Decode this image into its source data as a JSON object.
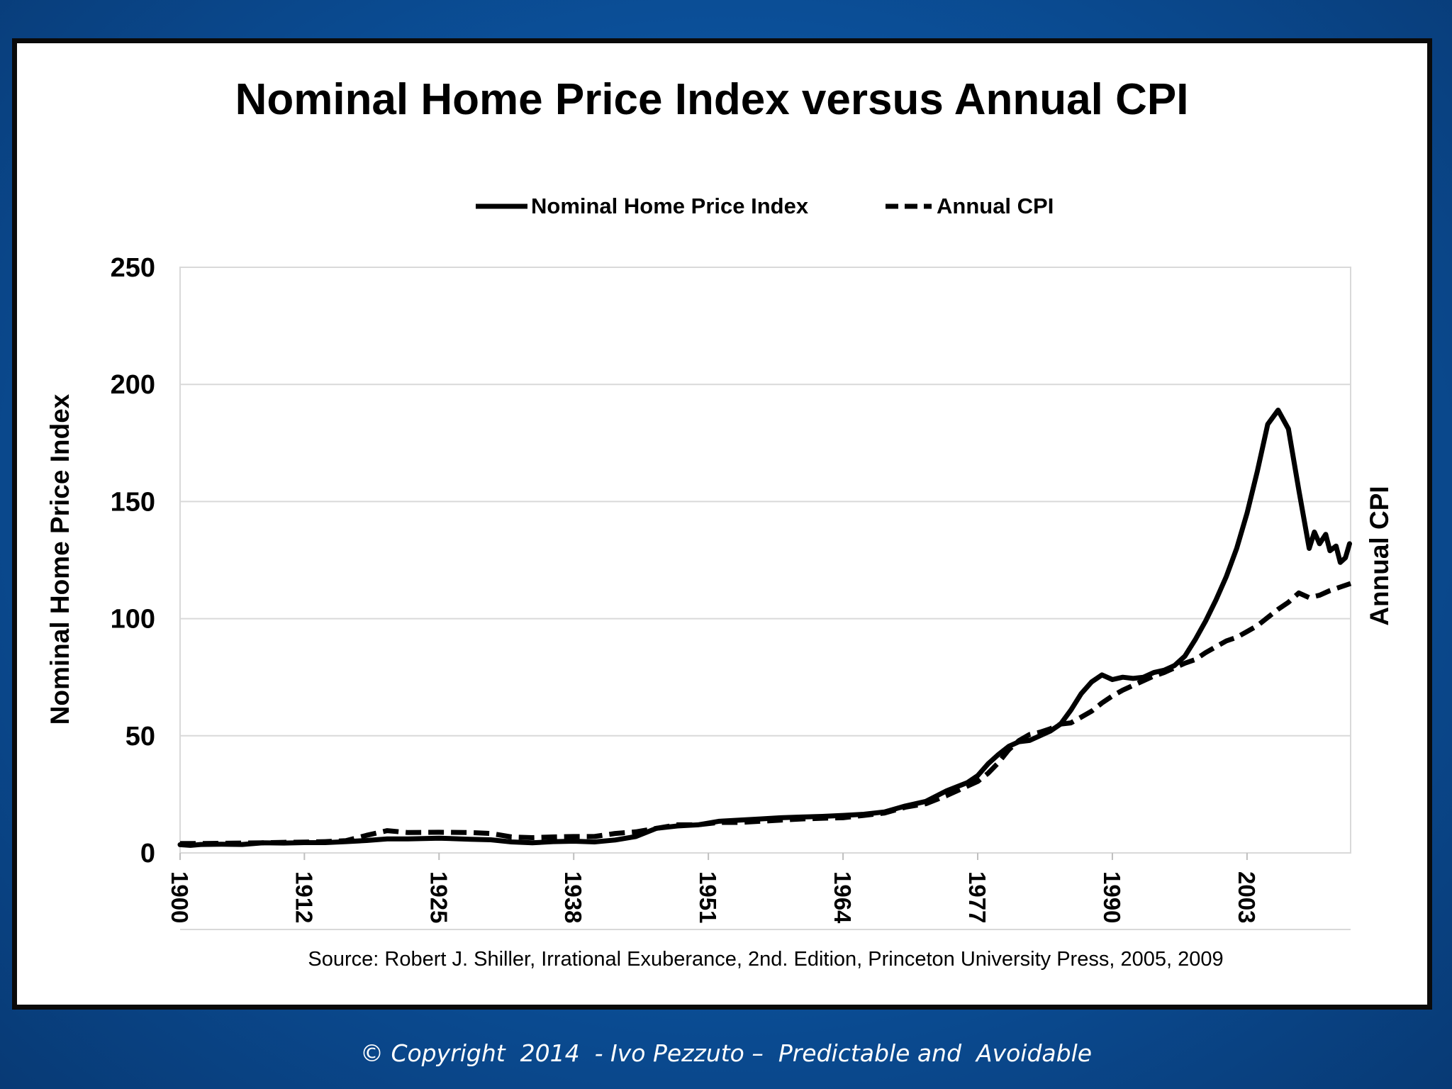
{
  "footer": "© Copyright  2014  - Ivo Pezzuto –  Predictable and  Avoidable",
  "colors": {
    "panel": "#ffffff",
    "line": "#000000",
    "grid": "#d9d9d9",
    "background": "#0b4f98"
  },
  "chart_data": {
    "type": "line",
    "title": "Nominal Home Price Index versus Annual CPI",
    "ylabel": "Nominal Home Price Index",
    "y2label": "Annual CPI",
    "source": "Source: Robert J. Shiller, Irrational Exuberance, 2nd. Edition, Princeton University Press, 2005, 2009",
    "xlim": [
      1900,
      2013
    ],
    "ylim": [
      0,
      250
    ],
    "yticks": [
      0,
      50,
      100,
      150,
      200,
      250
    ],
    "xticks": [
      1900,
      1912,
      1925,
      1938,
      1951,
      1964,
      1977,
      1990,
      2003
    ],
    "grid": true,
    "legend_position": "top",
    "series": [
      {
        "name": "Nominal Home Price Index",
        "style": "solid",
        "points": [
          [
            1900,
            3.5
          ],
          [
            1901,
            3.2
          ],
          [
            1902,
            3.6
          ],
          [
            1904,
            3.7
          ],
          [
            1906,
            3.6
          ],
          [
            1908,
            4.3
          ],
          [
            1910,
            4.2
          ],
          [
            1912,
            4.4
          ],
          [
            1914,
            4.4
          ],
          [
            1916,
            4.8
          ],
          [
            1918,
            5.3
          ],
          [
            1920,
            6.0
          ],
          [
            1922,
            6.0
          ],
          [
            1925,
            6.3
          ],
          [
            1928,
            5.8
          ],
          [
            1930,
            5.6
          ],
          [
            1932,
            4.7
          ],
          [
            1934,
            4.3
          ],
          [
            1936,
            4.8
          ],
          [
            1938,
            5.0
          ],
          [
            1940,
            4.7
          ],
          [
            1942,
            5.5
          ],
          [
            1944,
            7.0
          ],
          [
            1946,
            10.5
          ],
          [
            1948,
            11.5
          ],
          [
            1950,
            12.0
          ],
          [
            1952,
            13.5
          ],
          [
            1954,
            14.0
          ],
          [
            1956,
            14.5
          ],
          [
            1958,
            15.0
          ],
          [
            1960,
            15.3
          ],
          [
            1962,
            15.6
          ],
          [
            1964,
            16.0
          ],
          [
            1966,
            16.5
          ],
          [
            1968,
            17.5
          ],
          [
            1970,
            20.0
          ],
          [
            1972,
            22.0
          ],
          [
            1974,
            26.5
          ],
          [
            1976,
            30.0
          ],
          [
            1977,
            33.0
          ],
          [
            1978,
            38.0
          ],
          [
            1979,
            42.0
          ],
          [
            1980,
            45.5
          ],
          [
            1981,
            47.5
          ],
          [
            1982,
            48.0
          ],
          [
            1983,
            50.0
          ],
          [
            1984,
            52.0
          ],
          [
            1985,
            55.0
          ],
          [
            1986,
            61.0
          ],
          [
            1987,
            68.0
          ],
          [
            1988,
            73.0
          ],
          [
            1989,
            76.0
          ],
          [
            1990,
            74.0
          ],
          [
            1991,
            75.0
          ],
          [
            1992,
            74.5
          ],
          [
            1993,
            75.0
          ],
          [
            1994,
            77.0
          ],
          [
            1995,
            78.0
          ],
          [
            1996,
            80.0
          ],
          [
            1997,
            84.0
          ],
          [
            1998,
            91.0
          ],
          [
            1999,
            99.0
          ],
          [
            2000,
            108.0
          ],
          [
            2001,
            118.0
          ],
          [
            2002,
            130.0
          ],
          [
            2003,
            145.0
          ],
          [
            2004,
            163.0
          ],
          [
            2005,
            183.0
          ],
          [
            2006,
            189.0
          ],
          [
            2007,
            181.0
          ],
          [
            2008,
            155.0
          ],
          [
            2009,
            130.0
          ],
          [
            2009.5,
            137.0
          ],
          [
            2010,
            132.0
          ],
          [
            2010.6,
            136.0
          ],
          [
            2011,
            129.0
          ],
          [
            2011.6,
            131.0
          ],
          [
            2012,
            124.0
          ],
          [
            2012.5,
            126.0
          ],
          [
            2012.9,
            132.0
          ]
        ]
      },
      {
        "name": "Annual CPI",
        "style": "dashed",
        "points": [
          [
            1900,
            4.0
          ],
          [
            1902,
            4.0
          ],
          [
            1904,
            4.1
          ],
          [
            1906,
            4.2
          ],
          [
            1908,
            4.3
          ],
          [
            1910,
            4.5
          ],
          [
            1912,
            4.6
          ],
          [
            1914,
            4.8
          ],
          [
            1916,
            5.2
          ],
          [
            1918,
            7.5
          ],
          [
            1920,
            9.5
          ],
          [
            1922,
            8.7
          ],
          [
            1925,
            8.8
          ],
          [
            1928,
            8.7
          ],
          [
            1930,
            8.3
          ],
          [
            1932,
            6.8
          ],
          [
            1934,
            6.5
          ],
          [
            1936,
            6.8
          ],
          [
            1938,
            7.0
          ],
          [
            1940,
            7.0
          ],
          [
            1942,
            8.3
          ],
          [
            1944,
            9.0
          ],
          [
            1946,
            10.5
          ],
          [
            1948,
            12.0
          ],
          [
            1950,
            12.0
          ],
          [
            1952,
            13.0
          ],
          [
            1954,
            13.0
          ],
          [
            1956,
            13.5
          ],
          [
            1958,
            14.0
          ],
          [
            1960,
            14.5
          ],
          [
            1962,
            14.8
          ],
          [
            1964,
            15.0
          ],
          [
            1966,
            16.0
          ],
          [
            1968,
            17.0
          ],
          [
            1970,
            19.5
          ],
          [
            1972,
            21.0
          ],
          [
            1974,
            24.5
          ],
          [
            1976,
            28.5
          ],
          [
            1977,
            30.5
          ],
          [
            1978,
            34.0
          ],
          [
            1979,
            38.5
          ],
          [
            1980,
            44.0
          ],
          [
            1981,
            48.0
          ],
          [
            1982,
            50.5
          ],
          [
            1983,
            51.5
          ],
          [
            1984,
            53.0
          ],
          [
            1985,
            55.0
          ],
          [
            1986,
            55.5
          ],
          [
            1987,
            58.0
          ],
          [
            1988,
            60.5
          ],
          [
            1989,
            64.0
          ],
          [
            1990,
            67.0
          ],
          [
            1991,
            69.5
          ],
          [
            1992,
            71.5
          ],
          [
            1993,
            73.5
          ],
          [
            1994,
            75.5
          ],
          [
            1995,
            77.0
          ],
          [
            1996,
            79.0
          ],
          [
            1997,
            81.0
          ],
          [
            1998,
            82.5
          ],
          [
            1999,
            85.5
          ],
          [
            2000,
            88.0
          ],
          [
            2001,
            90.5
          ],
          [
            2002,
            92.0
          ],
          [
            2003,
            94.5
          ],
          [
            2004,
            97.0
          ],
          [
            2005,
            100.5
          ],
          [
            2006,
            104.0
          ],
          [
            2007,
            107.0
          ],
          [
            2008,
            111.0
          ],
          [
            2009,
            109.0
          ],
          [
            2010,
            110.0
          ],
          [
            2011,
            112.0
          ],
          [
            2012,
            113.5
          ],
          [
            2013,
            115.0
          ]
        ]
      }
    ]
  }
}
